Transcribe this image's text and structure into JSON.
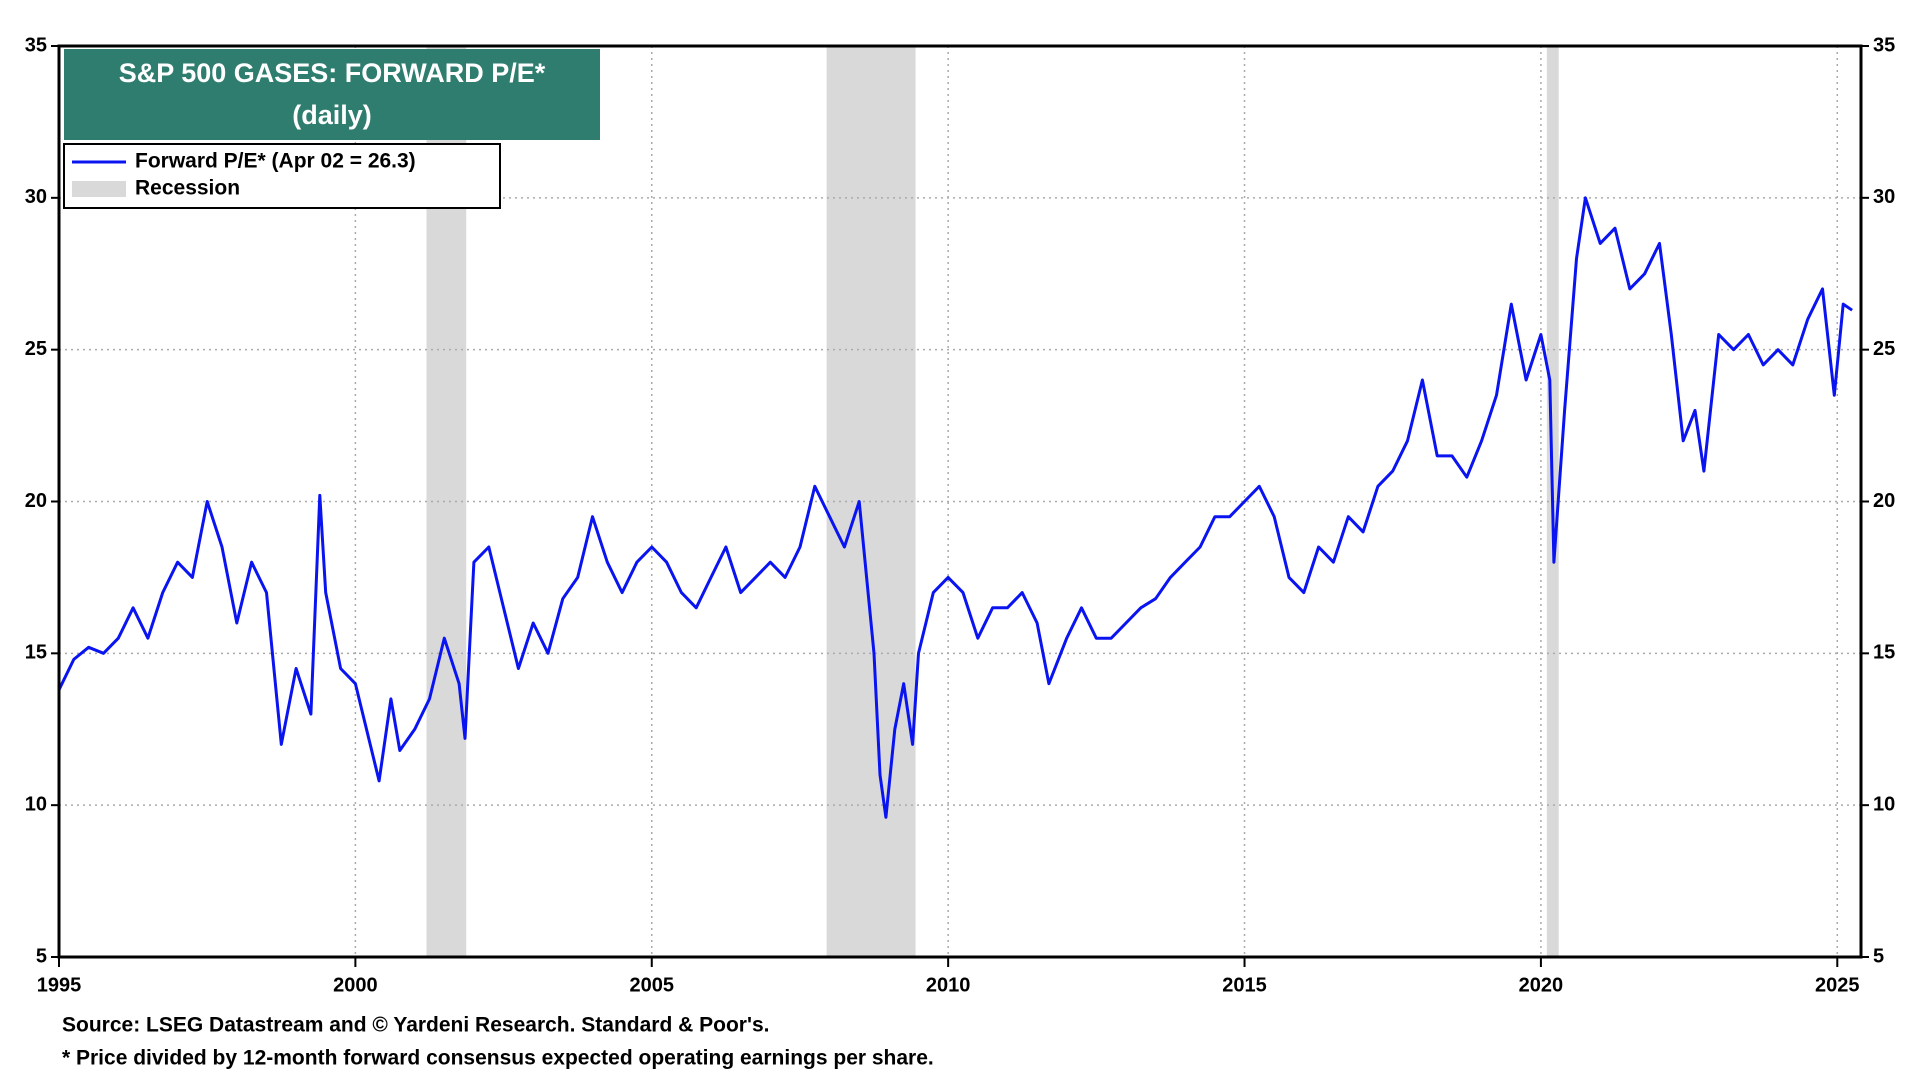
{
  "chart_data": {
    "type": "line",
    "title": "S&P 500 GASES: FORWARD P/E*",
    "subtitle": "(daily)",
    "source": "Source: LSEG Datastream and © Yardeni Research. Standard & Poor's.",
    "note": "* Price divided by 12-month forward consensus expected operating earnings per share.",
    "xlim": [
      1995,
      2025.4
    ],
    "xticks": [
      1995,
      2000,
      2005,
      2010,
      2015,
      2020,
      2025
    ],
    "ylim": [
      5,
      35
    ],
    "yticks": [
      5,
      10,
      15,
      20,
      25,
      30,
      35
    ],
    "grid": true,
    "recessions": {
      "name": "Recession",
      "color": "#d9d9d9",
      "spans": [
        [
          2001.2,
          2001.87
        ],
        [
          2007.95,
          2009.45
        ],
        [
          2020.1,
          2020.3
        ]
      ]
    },
    "x": [
      1995.0,
      1995.25,
      1995.5,
      1995.75,
      1996.0,
      1996.25,
      1996.5,
      1996.75,
      1997.0,
      1997.25,
      1997.5,
      1997.75,
      1998.0,
      1998.25,
      1998.5,
      1998.75,
      1999.0,
      1999.25,
      1999.4,
      1999.5,
      1999.75,
      2000.0,
      2000.25,
      2000.4,
      2000.6,
      2000.75,
      2001.0,
      2001.25,
      2001.5,
      2001.75,
      2001.85,
      2002.0,
      2002.25,
      2002.5,
      2002.75,
      2003.0,
      2003.25,
      2003.5,
      2003.75,
      2004.0,
      2004.25,
      2004.5,
      2004.75,
      2005.0,
      2005.25,
      2005.5,
      2005.75,
      2006.0,
      2006.25,
      2006.5,
      2006.75,
      2007.0,
      2007.25,
      2007.5,
      2007.75,
      2008.0,
      2008.25,
      2008.5,
      2008.75,
      2008.85,
      2008.95,
      2009.1,
      2009.25,
      2009.4,
      2009.5,
      2009.75,
      2010.0,
      2010.25,
      2010.5,
      2010.75,
      2011.0,
      2011.25,
      2011.5,
      2011.7,
      2012.0,
      2012.25,
      2012.5,
      2012.75,
      2013.0,
      2013.25,
      2013.5,
      2013.75,
      2014.0,
      2014.25,
      2014.5,
      2014.75,
      2015.0,
      2015.25,
      2015.5,
      2015.75,
      2016.0,
      2016.25,
      2016.5,
      2016.75,
      2017.0,
      2017.25,
      2017.5,
      2017.75,
      2018.0,
      2018.25,
      2018.5,
      2018.75,
      2019.0,
      2019.25,
      2019.5,
      2019.75,
      2020.0,
      2020.15,
      2020.22,
      2020.4,
      2020.6,
      2020.75,
      2021.0,
      2021.25,
      2021.5,
      2021.75,
      2022.0,
      2022.2,
      2022.4,
      2022.6,
      2022.75,
      2023.0,
      2023.25,
      2023.5,
      2023.75,
      2024.0,
      2024.25,
      2024.5,
      2024.75,
      2024.95,
      2025.1,
      2025.25
    ],
    "series": [
      {
        "name": "Forward P/E* (Apr 02 = 26.3)",
        "color": "#0a14f0",
        "values": [
          13.8,
          14.8,
          15.2,
          15.0,
          15.5,
          16.5,
          15.5,
          17.0,
          18.0,
          17.5,
          20.0,
          18.5,
          16.0,
          18.0,
          17.0,
          12.0,
          14.5,
          13.0,
          20.2,
          17.0,
          14.5,
          14.0,
          12.0,
          10.8,
          13.5,
          11.8,
          12.5,
          13.5,
          15.5,
          14.0,
          12.2,
          18.0,
          18.5,
          16.5,
          14.5,
          16.0,
          15.0,
          16.8,
          17.5,
          19.5,
          18.0,
          17.0,
          18.0,
          18.5,
          18.0,
          17.0,
          16.5,
          17.5,
          18.5,
          17.0,
          17.5,
          18.0,
          17.5,
          18.5,
          20.5,
          19.5,
          18.5,
          20.0,
          15.0,
          11.0,
          9.6,
          12.5,
          14.0,
          12.0,
          15.0,
          17.0,
          17.5,
          17.0,
          15.5,
          16.5,
          16.5,
          17.0,
          16.0,
          14.0,
          15.5,
          16.5,
          15.5,
          15.5,
          16.0,
          16.5,
          16.8,
          17.5,
          18.0,
          18.5,
          19.5,
          19.5,
          20.0,
          20.5,
          19.5,
          17.5,
          17.0,
          18.5,
          18.0,
          19.5,
          19.0,
          20.5,
          21.0,
          22.0,
          24.0,
          21.5,
          21.5,
          20.8,
          22.0,
          23.5,
          26.5,
          24.0,
          25.5,
          24.0,
          18.0,
          23.0,
          28.0,
          30.0,
          28.5,
          29.0,
          27.0,
          27.5,
          28.5,
          25.5,
          22.0,
          23.0,
          21.0,
          25.5,
          25.0,
          25.5,
          24.5,
          25.0,
          24.5,
          26.0,
          27.0,
          23.5,
          26.5,
          26.3
        ]
      }
    ]
  }
}
